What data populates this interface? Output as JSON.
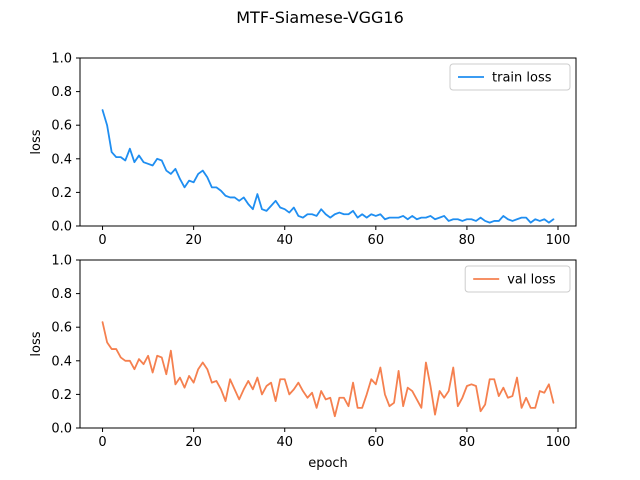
{
  "figure": {
    "title": "MTF-Siamese-VGG16"
  },
  "chart_data": [
    {
      "type": "line",
      "title": "",
      "xlabel": "",
      "ylabel": "loss",
      "xlim": [
        -4.95,
        103.95
      ],
      "ylim": [
        0,
        1.0
      ],
      "xticks": [
        0,
        20,
        40,
        60,
        80,
        100
      ],
      "yticks": [
        0.0,
        0.2,
        0.4,
        0.6,
        0.8,
        1.0
      ],
      "grid": false,
      "legend_position": "top-right",
      "series": [
        {
          "name": "train loss",
          "color": "#1f8ef1",
          "x": [
            0,
            1,
            2,
            3,
            4,
            5,
            6,
            7,
            8,
            9,
            10,
            11,
            12,
            13,
            14,
            15,
            16,
            17,
            18,
            19,
            20,
            21,
            22,
            23,
            24,
            25,
            26,
            27,
            28,
            29,
            30,
            31,
            32,
            33,
            34,
            35,
            36,
            37,
            38,
            39,
            40,
            41,
            42,
            43,
            44,
            45,
            46,
            47,
            48,
            49,
            50,
            51,
            52,
            53,
            54,
            55,
            56,
            57,
            58,
            59,
            60,
            61,
            62,
            63,
            64,
            65,
            66,
            67,
            68,
            69,
            70,
            71,
            72,
            73,
            74,
            75,
            76,
            77,
            78,
            79,
            80,
            81,
            82,
            83,
            84,
            85,
            86,
            87,
            88,
            89,
            90,
            91,
            92,
            93,
            94,
            95,
            96,
            97,
            98,
            99
          ],
          "y": [
            0.69,
            0.6,
            0.44,
            0.41,
            0.41,
            0.39,
            0.46,
            0.38,
            0.42,
            0.38,
            0.37,
            0.36,
            0.4,
            0.39,
            0.33,
            0.31,
            0.34,
            0.28,
            0.23,
            0.27,
            0.26,
            0.31,
            0.33,
            0.29,
            0.23,
            0.23,
            0.21,
            0.18,
            0.17,
            0.17,
            0.15,
            0.17,
            0.13,
            0.1,
            0.19,
            0.1,
            0.09,
            0.12,
            0.15,
            0.11,
            0.1,
            0.08,
            0.11,
            0.06,
            0.05,
            0.07,
            0.07,
            0.06,
            0.1,
            0.07,
            0.05,
            0.07,
            0.08,
            0.07,
            0.07,
            0.09,
            0.05,
            0.07,
            0.05,
            0.07,
            0.06,
            0.07,
            0.04,
            0.05,
            0.05,
            0.05,
            0.06,
            0.04,
            0.06,
            0.04,
            0.05,
            0.05,
            0.06,
            0.04,
            0.05,
            0.06,
            0.03,
            0.04,
            0.04,
            0.03,
            0.04,
            0.04,
            0.03,
            0.05,
            0.03,
            0.02,
            0.03,
            0.03,
            0.06,
            0.04,
            0.03,
            0.04,
            0.05,
            0.05,
            0.02,
            0.04,
            0.03,
            0.04,
            0.02,
            0.04
          ]
        }
      ]
    },
    {
      "type": "line",
      "title": "",
      "xlabel": "epoch",
      "ylabel": "loss",
      "xlim": [
        -4.95,
        103.95
      ],
      "ylim": [
        0,
        1.0
      ],
      "xticks": [
        0,
        20,
        40,
        60,
        80,
        100
      ],
      "yticks": [
        0.0,
        0.2,
        0.4,
        0.6,
        0.8,
        1.0
      ],
      "grid": false,
      "legend_position": "top-right",
      "series": [
        {
          "name": "val loss",
          "color": "#f5804f",
          "x": [
            0,
            1,
            2,
            3,
            4,
            5,
            6,
            7,
            8,
            9,
            10,
            11,
            12,
            13,
            14,
            15,
            16,
            17,
            18,
            19,
            20,
            21,
            22,
            23,
            24,
            25,
            26,
            27,
            28,
            29,
            30,
            31,
            32,
            33,
            34,
            35,
            36,
            37,
            38,
            39,
            40,
            41,
            42,
            43,
            44,
            45,
            46,
            47,
            48,
            49,
            50,
            51,
            52,
            53,
            54,
            55,
            56,
            57,
            58,
            59,
            60,
            61,
            62,
            63,
            64,
            65,
            66,
            67,
            68,
            69,
            70,
            71,
            72,
            73,
            74,
            75,
            76,
            77,
            78,
            79,
            80,
            81,
            82,
            83,
            84,
            85,
            86,
            87,
            88,
            89,
            90,
            91,
            92,
            93,
            94,
            95,
            96,
            97,
            98,
            99
          ],
          "y": [
            0.63,
            0.51,
            0.47,
            0.47,
            0.42,
            0.4,
            0.4,
            0.35,
            0.41,
            0.38,
            0.43,
            0.33,
            0.43,
            0.42,
            0.32,
            0.46,
            0.26,
            0.3,
            0.24,
            0.31,
            0.27,
            0.35,
            0.39,
            0.35,
            0.27,
            0.28,
            0.23,
            0.16,
            0.29,
            0.23,
            0.17,
            0.23,
            0.28,
            0.23,
            0.3,
            0.2,
            0.25,
            0.27,
            0.16,
            0.29,
            0.29,
            0.2,
            0.23,
            0.27,
            0.22,
            0.18,
            0.21,
            0.12,
            0.22,
            0.17,
            0.18,
            0.07,
            0.18,
            0.18,
            0.13,
            0.27,
            0.12,
            0.12,
            0.2,
            0.29,
            0.26,
            0.36,
            0.2,
            0.13,
            0.15,
            0.34,
            0.13,
            0.24,
            0.22,
            0.17,
            0.12,
            0.39,
            0.25,
            0.08,
            0.22,
            0.18,
            0.22,
            0.36,
            0.13,
            0.18,
            0.25,
            0.26,
            0.25,
            0.1,
            0.14,
            0.29,
            0.29,
            0.19,
            0.24,
            0.18,
            0.19,
            0.3,
            0.12,
            0.18,
            0.12,
            0.12,
            0.22,
            0.21,
            0.26,
            0.15
          ]
        }
      ]
    }
  ]
}
